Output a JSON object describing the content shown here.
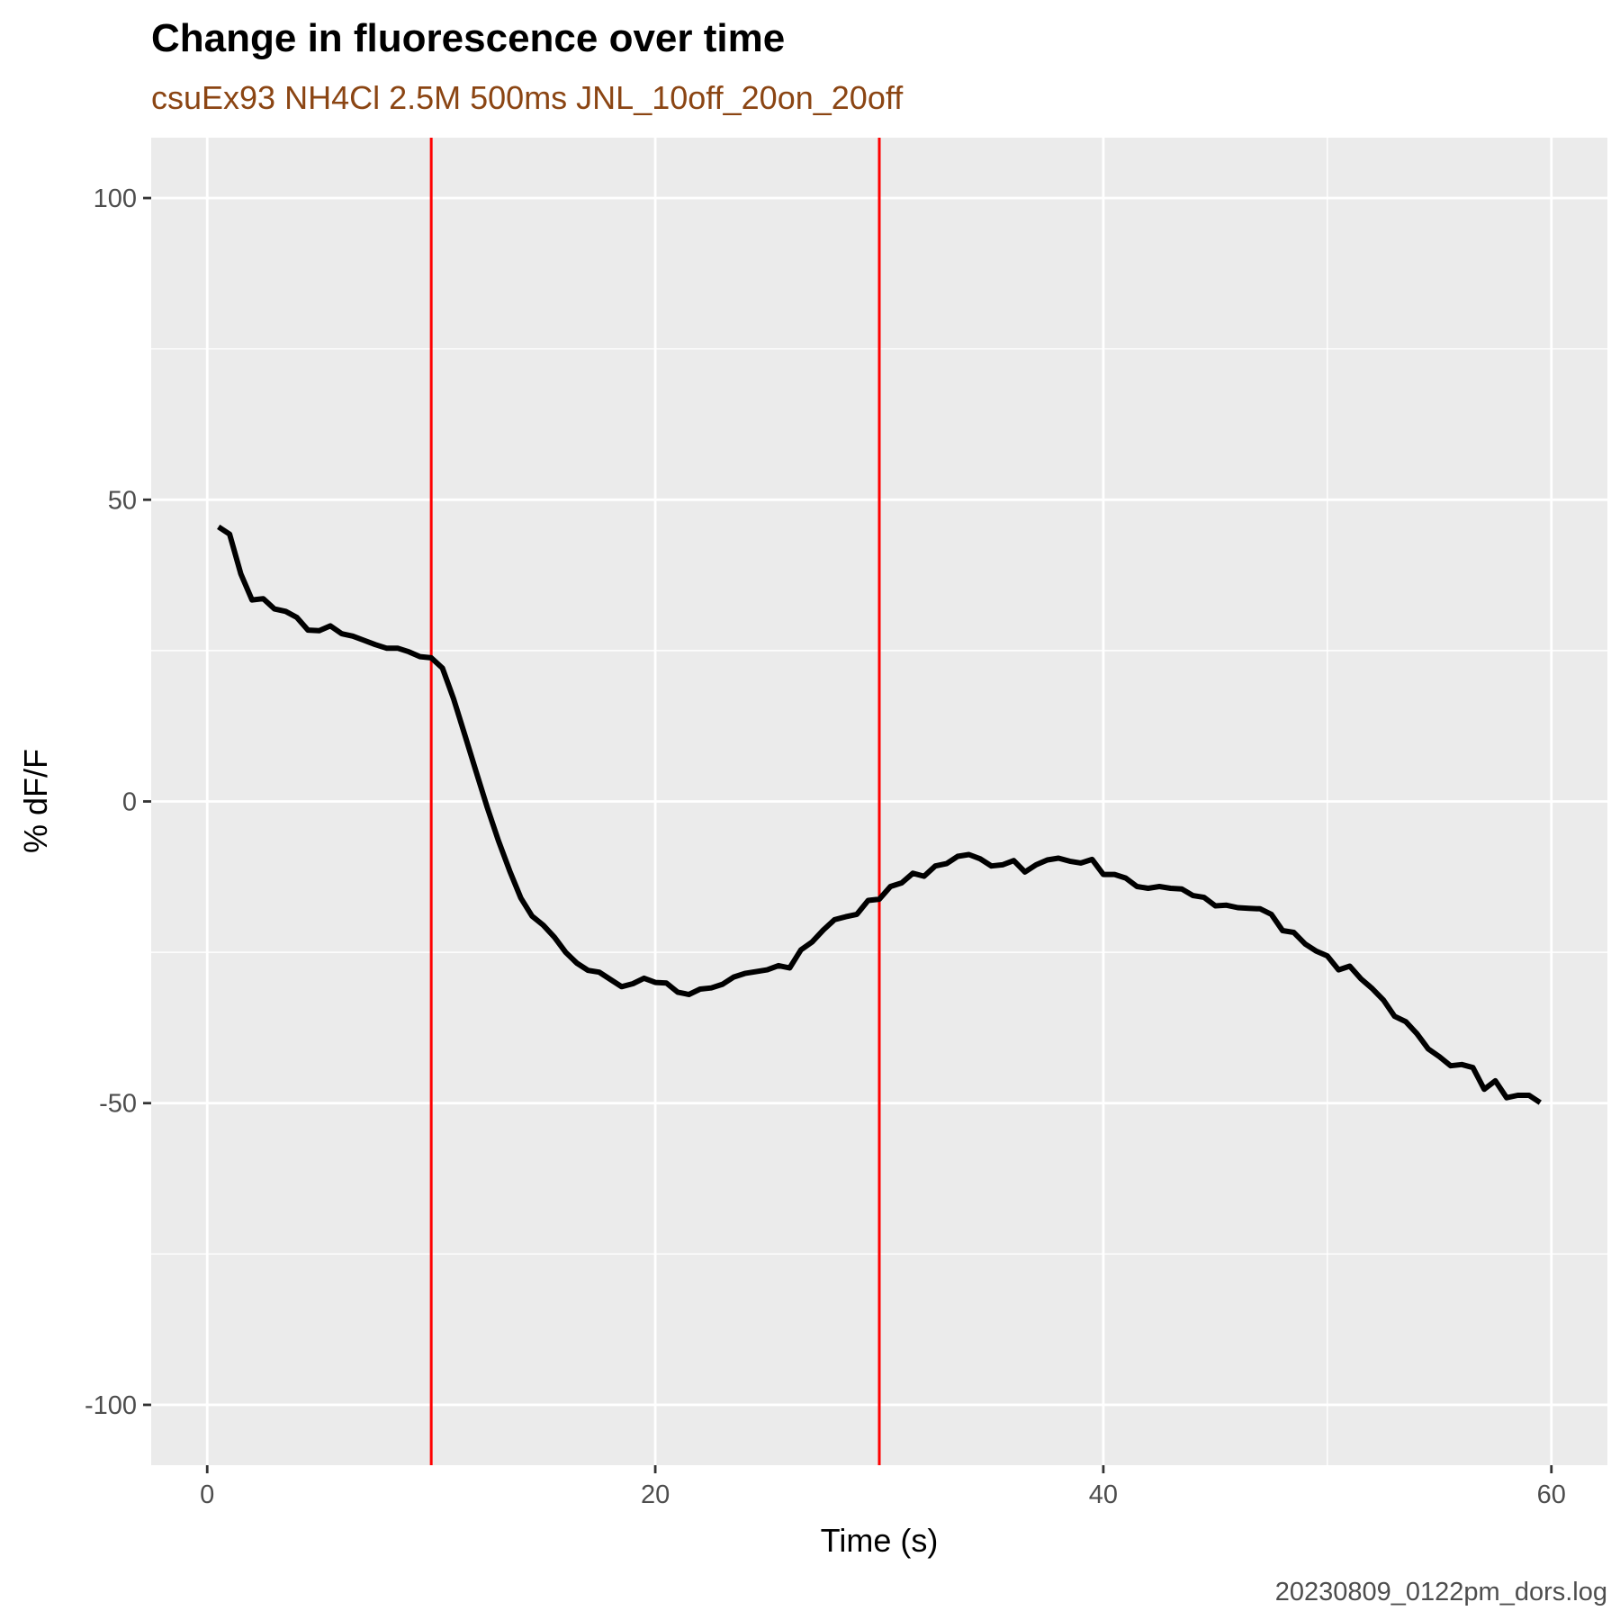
{
  "chart_data": {
    "type": "line",
    "title": "Change in fluorescence over time",
    "subtitle": "csuEx93 NH4Cl 2.5M 500ms JNL_10off_20on_20off",
    "xlabel": "Time (s)",
    "ylabel": "% dF/F",
    "caption": "20230809_0122pm_dors.log",
    "xlim": [
      -2.5,
      62.5
    ],
    "ylim": [
      -110,
      110
    ],
    "x_ticks": [
      0,
      20,
      40,
      60
    ],
    "x_tick_labels": [
      "0",
      "20",
      "40",
      "60"
    ],
    "y_ticks": [
      100,
      50,
      0,
      -50,
      -100
    ],
    "y_tick_labels": [
      "100",
      "50",
      "0",
      "-50",
      "-100"
    ],
    "x_minor_gridlines": [
      10,
      30,
      50
    ],
    "y_minor_gridlines": [
      75,
      25,
      -25,
      -75
    ],
    "grid": true,
    "vlines": [
      {
        "x": 10,
        "color": "#FF0000"
      },
      {
        "x": 30,
        "color": "#FF0000"
      }
    ],
    "series": [
      {
        "color": "#000000",
        "x": [
          0.5,
          1.0,
          1.5,
          2.0,
          2.5,
          3.0,
          3.5,
          4.0,
          4.5,
          5.0,
          5.5,
          6.0,
          6.5,
          7.0,
          7.5,
          8.0,
          8.5,
          9.0,
          9.5,
          10.0,
          10.5,
          11.0,
          11.5,
          12.0,
          12.5,
          13.0,
          13.5,
          14.0,
          14.5,
          15.0,
          15.5,
          16.0,
          16.5,
          17.0,
          17.5,
          18.0,
          18.5,
          19.0,
          19.5,
          20.0,
          20.5,
          21.0,
          21.5,
          22.0,
          22.5,
          23.0,
          23.5,
          24.0,
          24.5,
          25.0,
          25.5,
          26.0,
          26.5,
          27.0,
          27.5,
          28.0,
          28.5,
          29.0,
          29.5,
          30.0,
          30.5,
          31.0,
          31.5,
          32.0,
          32.5,
          33.0,
          33.5,
          34.0,
          34.5,
          35.0,
          35.5,
          36.0,
          36.5,
          37.0,
          37.5,
          38.0,
          38.5,
          39.0,
          39.5,
          40.0,
          40.5,
          41.0,
          41.5,
          42.0,
          42.5,
          43.0,
          43.5,
          44.0,
          44.5,
          45.0,
          45.5,
          46.0,
          46.5,
          47.0,
          47.5,
          48.0,
          48.5,
          49.0,
          49.5,
          50.0,
          50.5,
          51.0,
          51.5,
          52.0,
          52.5,
          53.0,
          53.5,
          54.0,
          54.5,
          55.0,
          55.5,
          56.0,
          56.5,
          57.0,
          57.5,
          58.0,
          58.5,
          59.0,
          59.5
        ],
        "values": [
          45.5,
          44.3,
          37.7,
          33.4,
          33.6,
          31.9,
          31.5,
          30.5,
          28.4,
          28.3,
          29.1,
          27.8,
          27.4,
          26.7,
          26.0,
          25.4,
          25.4,
          24.8,
          24.0,
          23.8,
          22.1,
          17.0,
          11.0,
          5.0,
          -1.0,
          -6.5,
          -11.5,
          -16.0,
          -19.0,
          -20.5,
          -22.5,
          -25.0,
          -26.8,
          -28.0,
          -28.3,
          -29.5,
          -30.7,
          -30.2,
          -29.3,
          -30.0,
          -30.1,
          -31.6,
          -32.0,
          -31.1,
          -30.9,
          -30.3,
          -29.1,
          -28.5,
          -28.2,
          -27.9,
          -27.2,
          -27.6,
          -24.6,
          -23.3,
          -21.3,
          -19.6,
          -19.1,
          -18.7,
          -16.4,
          -16.2,
          -14.1,
          -13.5,
          -11.9,
          -12.4,
          -10.7,
          -10.3,
          -9.1,
          -8.8,
          -9.5,
          -10.7,
          -10.5,
          -9.8,
          -11.7,
          -10.5,
          -9.7,
          -9.4,
          -9.9,
          -10.2,
          -9.6,
          -12.1,
          -12.1,
          -12.7,
          -14.1,
          -14.4,
          -14.1,
          -14.4,
          -14.5,
          -15.6,
          -15.9,
          -17.3,
          -17.2,
          -17.6,
          -17.7,
          -17.8,
          -18.7,
          -21.4,
          -21.7,
          -23.6,
          -24.8,
          -25.6,
          -27.9,
          -27.3,
          -29.4,
          -31.0,
          -32.9,
          -35.6,
          -36.5,
          -38.5,
          -41.0,
          -42.3,
          -43.8,
          -43.6,
          -44.1,
          -47.7,
          -46.3,
          -49.1,
          -48.7,
          -48.7,
          -49.9
        ]
      }
    ]
  }
}
